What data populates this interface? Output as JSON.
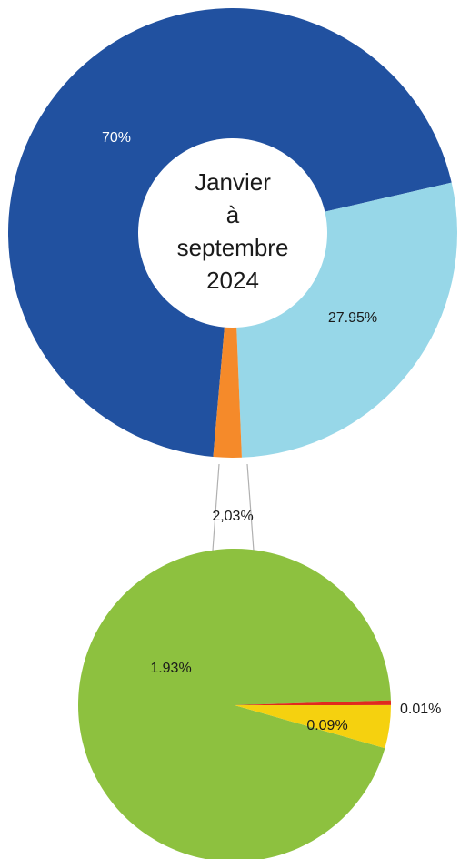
{
  "chart_data": [
    {
      "type": "donut",
      "center_label": [
        "Janvier",
        "à",
        "septembre",
        "2024"
      ],
      "values": [
        70,
        27.95,
        2.03
      ],
      "value_labels": [
        "70%",
        "27.95%",
        "2,03%"
      ],
      "colors": [
        "#2151a0",
        "#97d7e8",
        "#f58a2a"
      ]
    },
    {
      "type": "pie",
      "values": [
        1.93,
        0.09,
        0.01
      ],
      "value_labels": [
        "1.93%",
        "0.09%",
        "0.01%"
      ],
      "colors": [
        "#8dc13f",
        "#f5d10f",
        "#e02a1e"
      ]
    }
  ]
}
